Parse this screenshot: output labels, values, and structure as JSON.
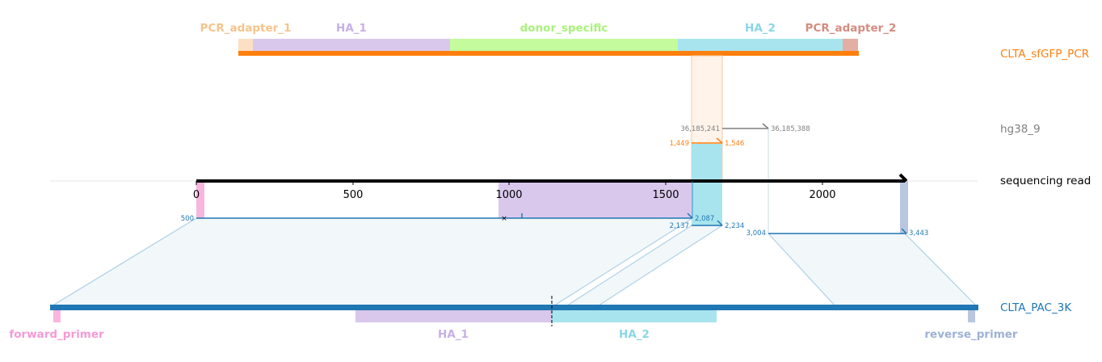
{
  "references": {
    "pcr": {
      "name": "CLTA_sfGFP_PCR",
      "color": "#ff7f0e"
    },
    "genome": {
      "name": "hg38_9",
      "color": "#7f7f7f"
    },
    "read": {
      "name": "sequencing read",
      "color": "#000000"
    },
    "plasmid": {
      "name": "CLTA_PAC_3K",
      "color": "#1f77b4"
    }
  },
  "pcr_features": [
    {
      "name": "PCR_adapter_1",
      "color": "#f5c48c",
      "fill": "#fbe0c3"
    },
    {
      "name": "HA_1",
      "color": "#c5b0e6",
      "fill": "#d9c8ec"
    },
    {
      "name": "donor_specific",
      "color": "#a9f17c",
      "fill": "#c4fb9c"
    },
    {
      "name": "HA_2",
      "color": "#8ad6e6",
      "fill": "#a8e4ee"
    },
    {
      "name": "PCR_adapter_2",
      "color": "#d48c80",
      "fill": "#e3aea4"
    }
  ],
  "plasmid_features": [
    {
      "name": "forward_primer",
      "color": "#f59ad6",
      "fill": "#f8b6df"
    },
    {
      "name": "HA_1",
      "color": "#c5b0e6",
      "fill": "#d9c8ec"
    },
    {
      "name": "HA_2",
      "color": "#8ad6e6",
      "fill": "#a8e4ee"
    },
    {
      "name": "reverse_primer",
      "color": "#9eb0d4",
      "fill": "#b8c6e0"
    }
  ],
  "read_axis": {
    "ticks": [
      "0",
      "500",
      "1000",
      "1500",
      "2000"
    ]
  },
  "coordinates": {
    "genome_start": "36,185,241",
    "genome_end": "36,185,388",
    "pcr_start": "1,449",
    "pcr_end": "1,546",
    "plasmid_a_start": "500",
    "plasmid_a_end": "2,087",
    "plasmid_b_start": "2,137",
    "plasmid_b_end": "2,234",
    "plasmid_c_start": "3,004",
    "plasmid_c_end": "3,443"
  }
}
